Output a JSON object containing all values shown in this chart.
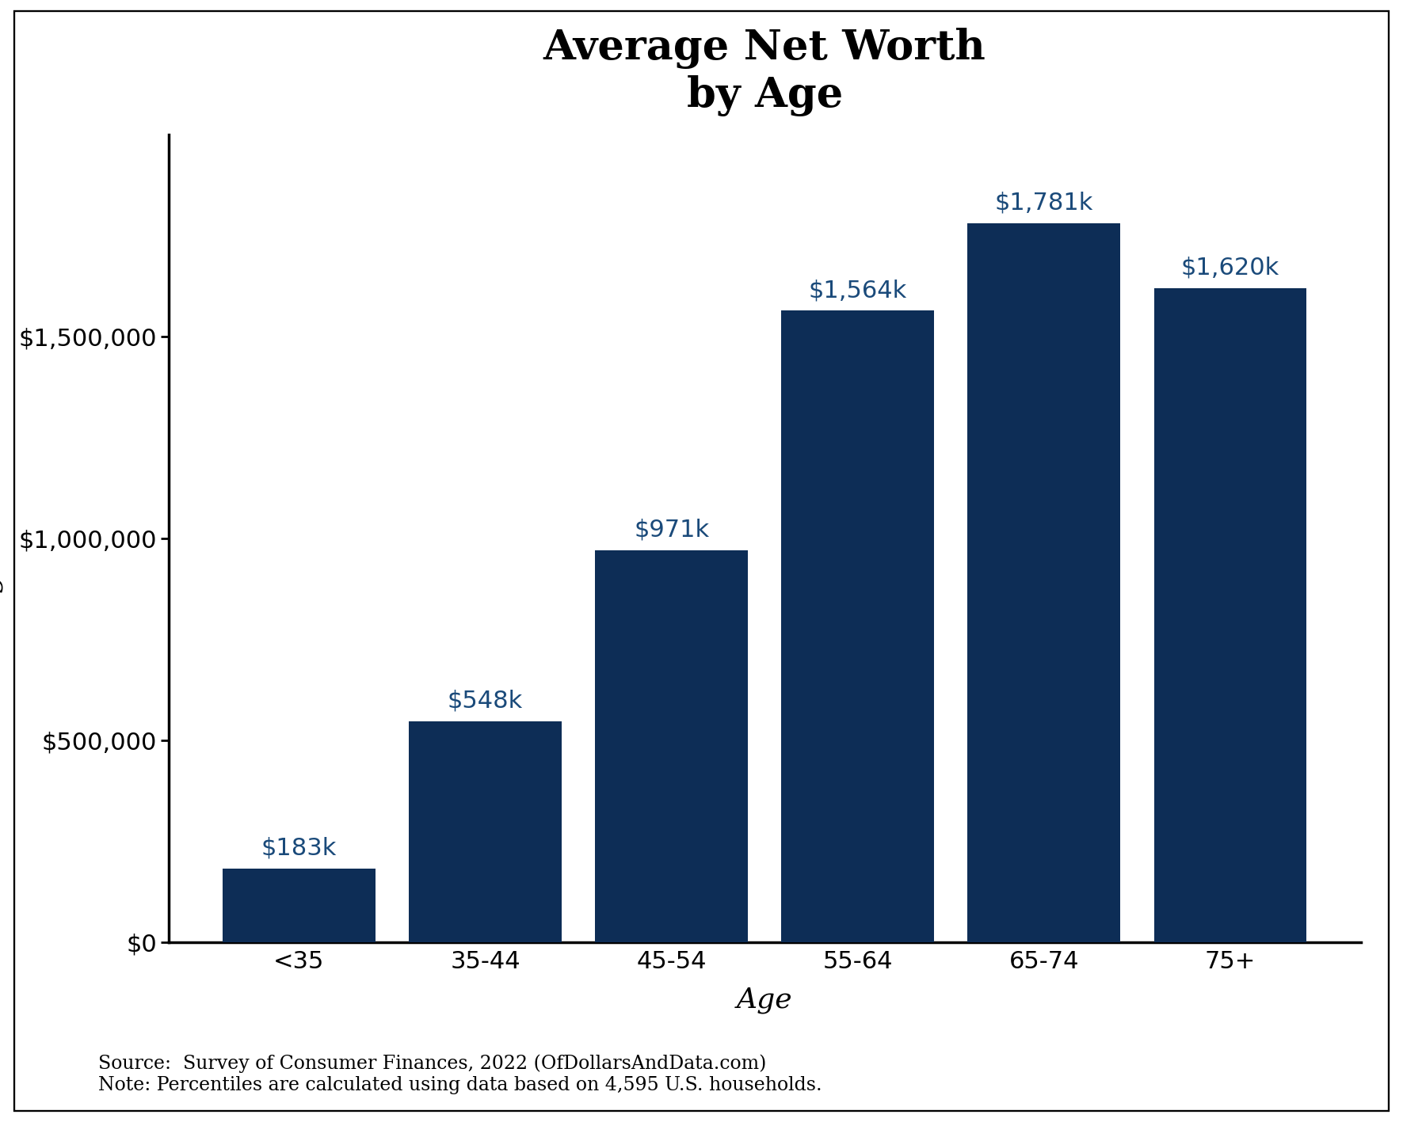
{
  "title": "Average Net Worth\nby Age",
  "categories": [
    "<35",
    "35-44",
    "45-54",
    "55-64",
    "65-74",
    "75+"
  ],
  "values": [
    183000,
    548000,
    971000,
    1564000,
    1781000,
    1620000
  ],
  "bar_labels": [
    "$183k",
    "$548k",
    "$971k",
    "$1,564k",
    "$1,781k",
    "$1,620k"
  ],
  "bar_color": "#0d2d56",
  "label_color": "#1a4a7a",
  "xlabel": "Age",
  "ylabel": "Average Net Worth",
  "ylim": [
    0,
    2000000
  ],
  "yticks": [
    0,
    500000,
    1000000,
    1500000
  ],
  "ytick_labels": [
    "$0",
    "$500,000",
    "$1,000,000",
    "$1,500,000"
  ],
  "source_text": "Source:  Survey of Consumer Finances, 2022 (OfDollarsAndData.com)\nNote: Percentiles are calculated using data based on 4,595 U.S. households.",
  "background_color": "#ffffff",
  "title_fontsize": 38,
  "axis_label_fontsize": 26,
  "tick_fontsize": 22,
  "bar_label_fontsize": 22,
  "source_fontsize": 17
}
